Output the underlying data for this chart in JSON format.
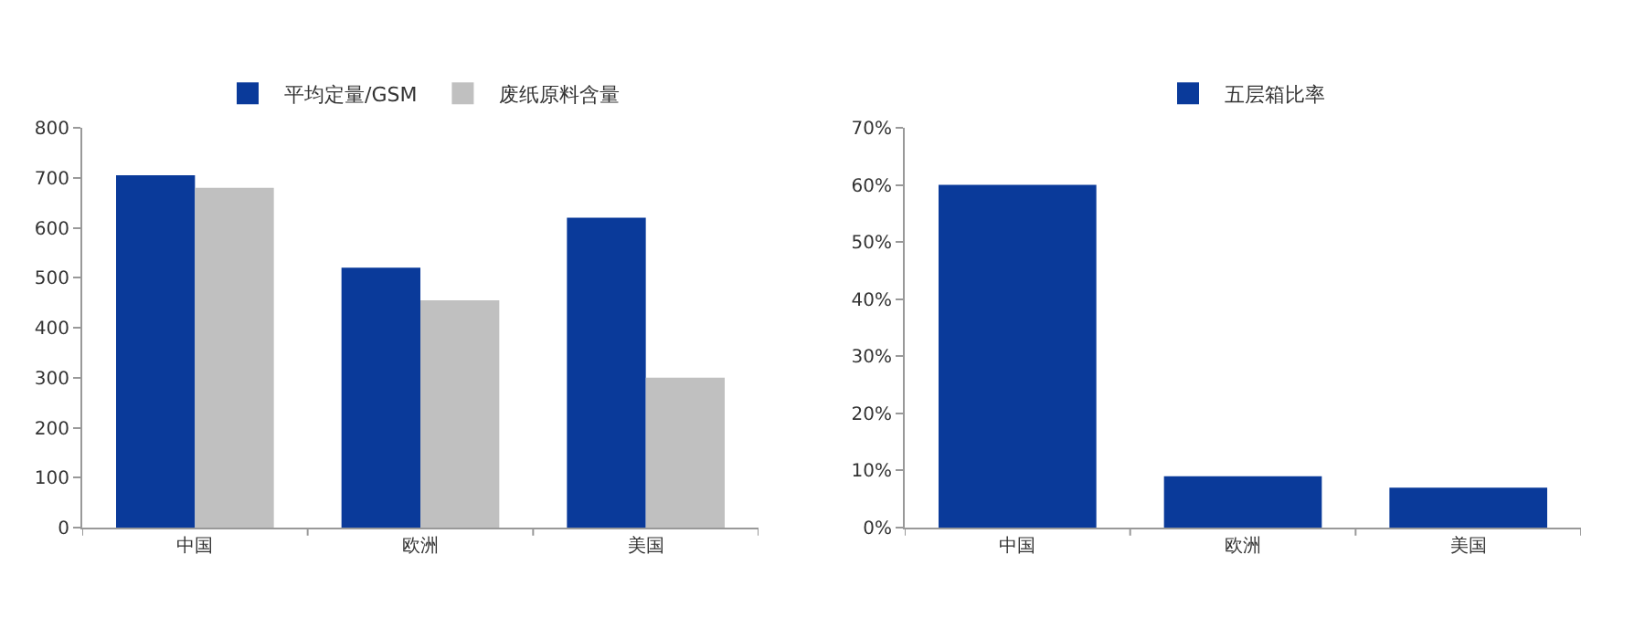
{
  "chart_data": [
    {
      "type": "bar",
      "categories": [
        "中国",
        "欧洲",
        "美国"
      ],
      "series": [
        {
          "name": "平均定量/GSM",
          "color": "#0a3a9a",
          "values": [
            705,
            520,
            620
          ]
        },
        {
          "name": "废纸原料含量",
          "color": "#c0c0c0",
          "values": [
            680,
            455,
            300
          ]
        }
      ],
      "ylim": [
        0,
        800
      ],
      "yticks": [
        0,
        100,
        200,
        300,
        400,
        500,
        600,
        700,
        800
      ],
      "grid": false,
      "legend": "top"
    },
    {
      "type": "bar",
      "categories": [
        "中国",
        "欧洲",
        "美国"
      ],
      "series": [
        {
          "name": "五层箱比率",
          "color": "#0a3a9a",
          "values": [
            60,
            9,
            7
          ]
        }
      ],
      "ylim": [
        0,
        70
      ],
      "yticks": [
        {
          "value": 0,
          "label": "0%"
        },
        {
          "value": 10,
          "label": "10%"
        },
        {
          "value": 20,
          "label": "20%"
        },
        {
          "value": 30,
          "label": "30%"
        },
        {
          "value": 40,
          "label": "40%"
        },
        {
          "value": 50,
          "label": "50%"
        },
        {
          "value": 60,
          "label": "60%"
        },
        {
          "value": 70,
          "label": "70%"
        }
      ],
      "grid": false,
      "legend": "top"
    }
  ]
}
